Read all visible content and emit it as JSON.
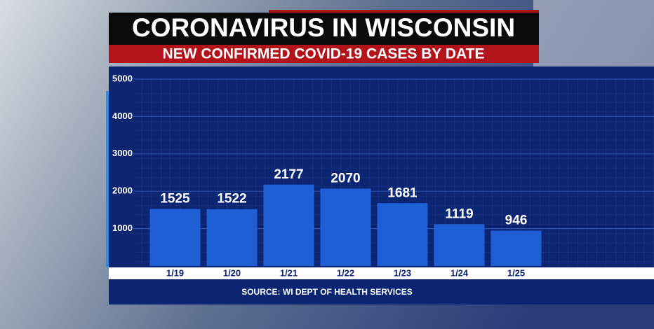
{
  "chart_data": {
    "type": "bar",
    "title": "CORONAVIRUS IN WISCONSIN",
    "subtitle": "NEW CONFIRMED COVID-19 CASES BY DATE",
    "categories": [
      "1/19",
      "1/20",
      "1/21",
      "1/22",
      "1/23",
      "1/24",
      "1/25"
    ],
    "values": [
      1525,
      1522,
      2177,
      2070,
      1681,
      1119,
      946
    ],
    "color": "#1f5fd6",
    "ylim": [
      0,
      5000
    ],
    "yticks": [
      1000,
      2000,
      3000,
      4000,
      5000
    ],
    "grid": true,
    "source": "SOURCE: WI DEPT OF HEALTH SERVICES"
  }
}
